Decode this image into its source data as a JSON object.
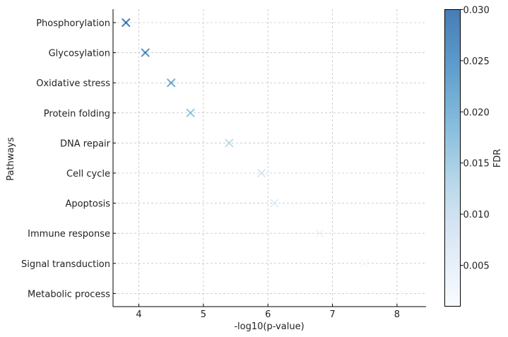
{
  "chart_data": {
    "type": "scatter",
    "title": "",
    "xlabel": "-log10(p-value)",
    "ylabel": "Pathways",
    "xlim": [
      3.6,
      8.45
    ],
    "x_ticks": [
      4,
      5,
      6,
      7,
      8
    ],
    "grid": true,
    "marker": "x",
    "categories": [
      "Phosphorylation",
      "Glycosylation",
      "Oxidative stress",
      "Protein folding",
      "DNA repair",
      "Cell cycle",
      "Apoptosis",
      "Immune response",
      "Signal transduction",
      "Metabolic process"
    ],
    "points": [
      {
        "pathway": "Phosphorylation",
        "x": 3.8,
        "fdr": 0.03
      },
      {
        "pathway": "Glycosylation",
        "x": 4.1,
        "fdr": 0.027
      },
      {
        "pathway": "Oxidative stress",
        "x": 4.5,
        "fdr": 0.022
      },
      {
        "pathway": "Protein folding",
        "x": 4.8,
        "fdr": 0.017
      },
      {
        "pathway": "DNA repair",
        "x": 5.4,
        "fdr": 0.012
      },
      {
        "pathway": "Cell cycle",
        "x": 5.9,
        "fdr": 0.008
      },
      {
        "pathway": "Apoptosis",
        "x": 6.1,
        "fdr": 0.006
      },
      {
        "pathway": "Immune response",
        "x": 6.8,
        "fdr": 0.003
      },
      {
        "pathway": "Signal transduction",
        "x": 7.5,
        "fdr": 0.002
      },
      {
        "pathway": "Metabolic process",
        "x": 8.1,
        "fdr": 0.001
      }
    ],
    "colorbar": {
      "label": "FDR",
      "min": 0.001,
      "max": 0.03,
      "ticks": [
        0.005,
        0.01,
        0.015,
        0.02,
        0.025,
        0.03
      ],
      "tick_labels": [
        "0.005",
        "0.010",
        "0.015",
        "0.020",
        "0.025",
        "0.030"
      ],
      "colormap": "Blues",
      "colors": [
        "#f7fbff",
        "#deebf7",
        "#c6dbef",
        "#9ecae1",
        "#6baed6",
        "#4292c6",
        "#2171b5",
        "#08519c"
      ],
      "alpha": 0.75
    }
  }
}
